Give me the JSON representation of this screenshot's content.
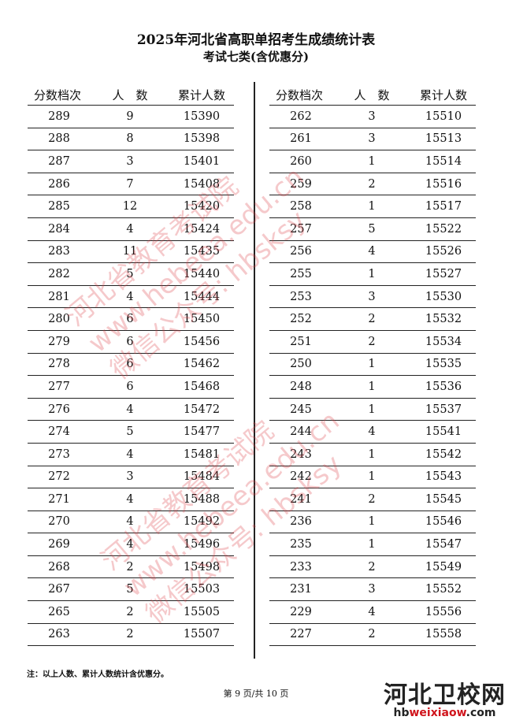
{
  "title": "2025年河北省高职单招考生成绩统计表",
  "subtitle": "考试七类(含优惠分)",
  "headers": [
    "分数档次",
    "人　数",
    "累计人数"
  ],
  "left_rows": [
    [
      "289",
      "9",
      "15390"
    ],
    [
      "288",
      "8",
      "15398"
    ],
    [
      "287",
      "3",
      "15401"
    ],
    [
      "286",
      "7",
      "15408"
    ],
    [
      "285",
      "12",
      "15420"
    ],
    [
      "284",
      "4",
      "15424"
    ],
    [
      "283",
      "11",
      "15435"
    ],
    [
      "282",
      "5",
      "15440"
    ],
    [
      "281",
      "4",
      "15444"
    ],
    [
      "280",
      "6",
      "15450"
    ],
    [
      "279",
      "6",
      "15456"
    ],
    [
      "278",
      "6",
      "15462"
    ],
    [
      "277",
      "6",
      "15468"
    ],
    [
      "276",
      "4",
      "15472"
    ],
    [
      "274",
      "5",
      "15477"
    ],
    [
      "273",
      "4",
      "15481"
    ],
    [
      "272",
      "3",
      "15484"
    ],
    [
      "271",
      "4",
      "15488"
    ],
    [
      "270",
      "4",
      "15492"
    ],
    [
      "269",
      "4",
      "15496"
    ],
    [
      "268",
      "2",
      "15498"
    ],
    [
      "267",
      "5",
      "15503"
    ],
    [
      "265",
      "2",
      "15505"
    ],
    [
      "263",
      "2",
      "15507"
    ]
  ],
  "right_rows": [
    [
      "262",
      "3",
      "15510"
    ],
    [
      "261",
      "3",
      "15513"
    ],
    [
      "260",
      "1",
      "15514"
    ],
    [
      "259",
      "2",
      "15516"
    ],
    [
      "258",
      "1",
      "15517"
    ],
    [
      "257",
      "5",
      "15522"
    ],
    [
      "256",
      "4",
      "15526"
    ],
    [
      "255",
      "1",
      "15527"
    ],
    [
      "253",
      "3",
      "15530"
    ],
    [
      "252",
      "2",
      "15532"
    ],
    [
      "251",
      "2",
      "15534"
    ],
    [
      "250",
      "1",
      "15535"
    ],
    [
      "248",
      "1",
      "15536"
    ],
    [
      "245",
      "1",
      "15537"
    ],
    [
      "244",
      "4",
      "15541"
    ],
    [
      "243",
      "1",
      "15542"
    ],
    [
      "242",
      "1",
      "15543"
    ],
    [
      "241",
      "2",
      "15545"
    ],
    [
      "236",
      "1",
      "15546"
    ],
    [
      "235",
      "1",
      "15547"
    ],
    [
      "233",
      "2",
      "15549"
    ],
    [
      "231",
      "3",
      "15552"
    ],
    [
      "229",
      "4",
      "15556"
    ],
    [
      "227",
      "2",
      "15558"
    ]
  ],
  "note": "注：以上人数、累计人数统计含优惠分。",
  "page_indicator": "第 9 页/共 10 页",
  "watermark": [
    "河北省教育考试院",
    "www.hebeea.edu.cn",
    "微信公众号: hbsksy"
  ],
  "watermark_color": "#dc3c46",
  "logo": {
    "name": "河北卫校网",
    "url_prefix": "hb",
    "url_highlight": "weixiaow",
    "url_suffix": ".com"
  }
}
